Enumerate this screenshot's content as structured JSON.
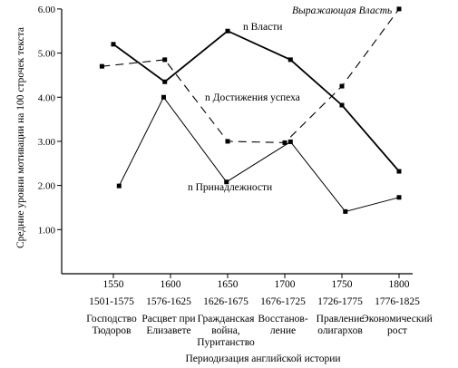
{
  "chart_data": {
    "type": "line",
    "ylabel": "Средние уровни мотивации на 100 строчек текста",
    "xlabel": "Периодизация английской истории",
    "ylim": [
      0,
      6
    ],
    "yticks": [
      "6.00",
      "5.00",
      "4.00",
      "3.00",
      "2.00",
      "1.00"
    ],
    "ytick_values": [
      6,
      5,
      4,
      3,
      2,
      1
    ],
    "grid": false,
    "x": [
      1550,
      1600,
      1650,
      1700,
      1750,
      1800
    ],
    "x_tick_labels": [
      "1550",
      "1600",
      "1650",
      "1700",
      "1750",
      "1800"
    ],
    "period_labels": [
      "1501-1575",
      "1576-1625",
      "1626-1675",
      "1676-1725",
      "1726-1775",
      "1776-1825"
    ],
    "category_labels": [
      [
        "Господство",
        "Тюдоров"
      ],
      [
        "Расцвет при",
        "Елизавете"
      ],
      [
        "Гражданская",
        "война,",
        "Пуританство"
      ],
      [
        "Восстанов-",
        "ление"
      ],
      [
        "Правление",
        "олигархов"
      ],
      [
        "Экономический",
        "рост"
      ]
    ],
    "series": [
      {
        "name": "n Власти",
        "style": "solid-thick",
        "points": [
          [
            1550,
            5.2
          ],
          [
            1595,
            4.35
          ],
          [
            1650,
            5.5
          ],
          [
            1705,
            4.85
          ],
          [
            1750,
            3.82
          ],
          [
            1800,
            2.32
          ]
        ]
      },
      {
        "name": "n Достижения успеха",
        "style": "dashed",
        "points": [
          [
            1540,
            4.7
          ],
          [
            1595,
            4.85
          ],
          [
            1650,
            3.0
          ],
          [
            1700,
            2.97
          ],
          [
            1750,
            4.25
          ],
          [
            1800,
            6.0
          ]
        ]
      },
      {
        "name": "n Принадлежности",
        "style": "solid-thin",
        "points": [
          [
            1555,
            1.99
          ],
          [
            1594,
            4.0
          ],
          [
            1649,
            2.08
          ],
          [
            1705,
            2.99
          ],
          [
            1753,
            1.41
          ],
          [
            1800,
            1.73
          ]
        ]
      }
    ],
    "annotations": [
      "Выражающая Власть"
    ]
  }
}
